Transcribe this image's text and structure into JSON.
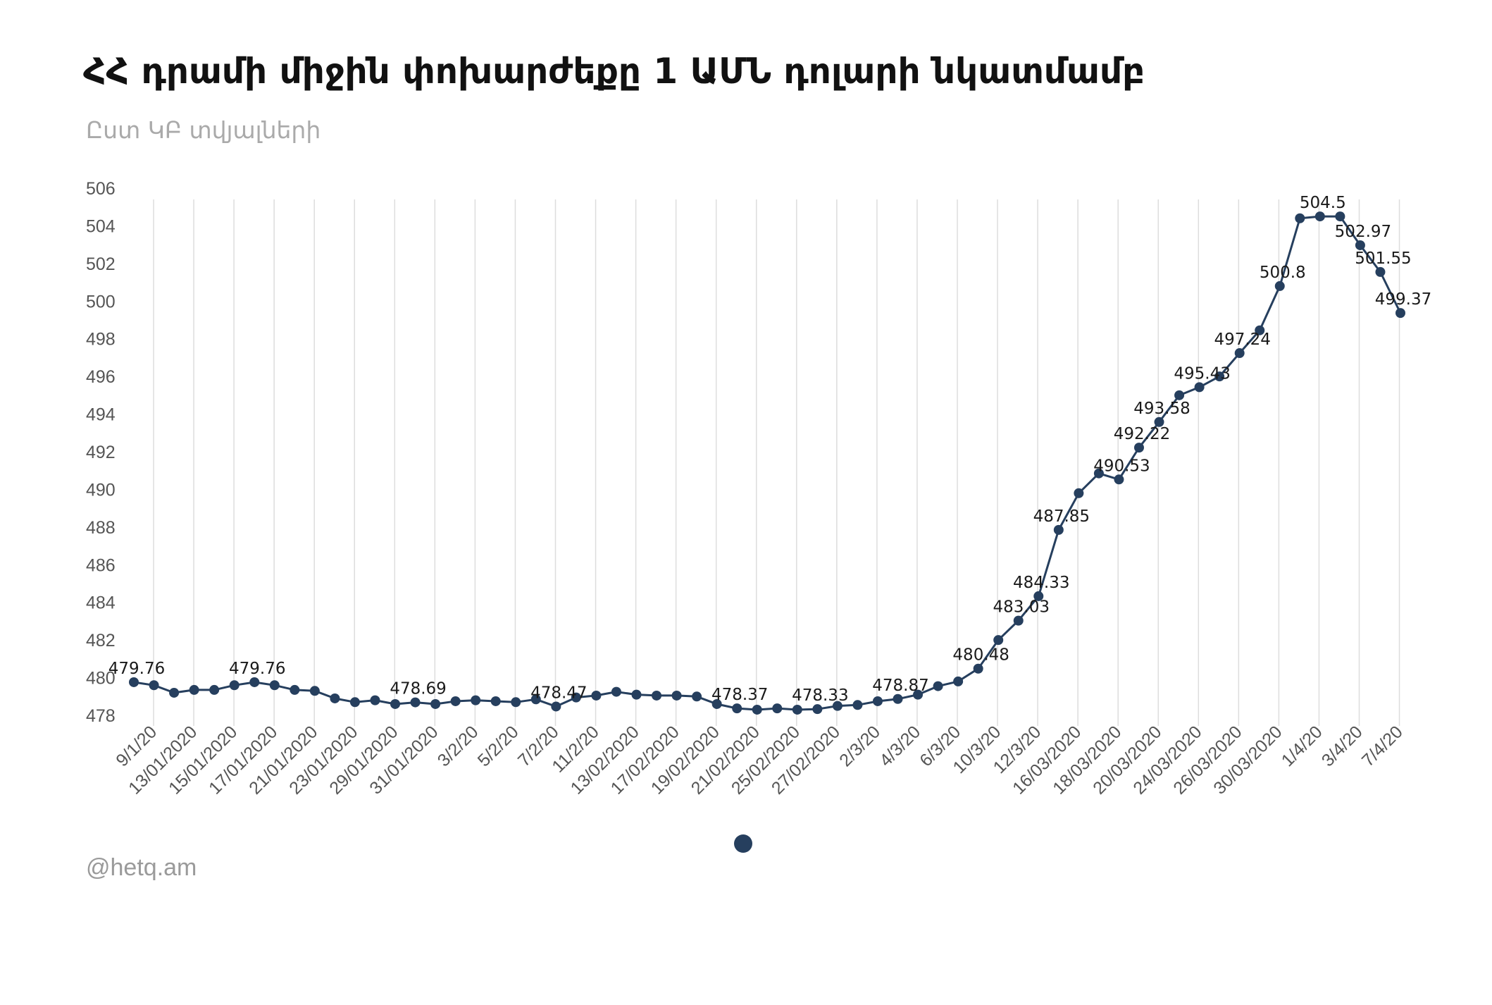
{
  "title": "ՀՀ դրամի միջին փոխարժեքը   1 ԱՄՆ դոլարի նկատմամբ",
  "subtitle": "Ըստ ԿԲ տվյալների",
  "credit": "@hetq.am",
  "colors": {
    "series": "#263f5e",
    "grid": "#dddddd",
    "text": "#555555"
  },
  "chart_data": {
    "type": "line",
    "title": "ՀՀ դրամի միջին փոխարժեքը   1 ԱՄՆ դոլարի նկատմամբ",
    "subtitle": "Ըստ ԿԲ տվյալների",
    "xlabel": "",
    "ylabel": "",
    "ylim": [
      478,
      506
    ],
    "yticks": [
      478,
      480,
      482,
      484,
      486,
      488,
      490,
      492,
      494,
      496,
      498,
      500,
      502,
      504,
      506
    ],
    "grid": "vertical",
    "legend": "bottom-center",
    "x_tick_labels": [
      "9/1/20",
      "13/01/2020",
      "15/01/2020",
      "17/01/2020",
      "21/01/2020",
      "23/01/2020",
      "29/01/2020",
      "31/01/2020",
      "3/2/20",
      "5/2/20",
      "7/2/20",
      "11/2/20",
      "13/02/2020",
      "17/02/2020",
      "19/02/2020",
      "21/02/2020",
      "25/02/2020",
      "27/02/2020",
      "2/3/20",
      "4/3/20",
      "6/3/20",
      "10/3/20",
      "12/3/20",
      "16/03/2020",
      "18/03/2020",
      "20/03/2020",
      "24/03/2020",
      "26/03/2020",
      "30/03/2020",
      "1/4/20",
      "3/4/20",
      "7/4/20"
    ],
    "series": [
      {
        "values": [
          479.76,
          479.6,
          479.2,
          479.35,
          479.35,
          479.6,
          479.76,
          479.6,
          479.35,
          479.3,
          478.9,
          478.7,
          478.8,
          478.6,
          478.69,
          478.6,
          478.75,
          478.8,
          478.75,
          478.7,
          478.85,
          478.47,
          478.95,
          479.05,
          479.25,
          479.1,
          479.05,
          479.05,
          479.0,
          478.6,
          478.37,
          478.3,
          478.37,
          478.3,
          478.33,
          478.5,
          478.55,
          478.75,
          478.87,
          479.1,
          479.55,
          479.8,
          480.48,
          482.0,
          483.03,
          484.33,
          487.85,
          489.8,
          490.85,
          490.53,
          492.22,
          493.58,
          495.0,
          495.43,
          496.0,
          497.24,
          498.45,
          500.8,
          504.4,
          504.5,
          504.5,
          502.97,
          501.55,
          499.37
        ],
        "data_labels": [
          {
            "index": 0,
            "text": "479.76"
          },
          {
            "index": 6,
            "text": "479.76"
          },
          {
            "index": 14,
            "text": "478.69"
          },
          {
            "index": 21,
            "text": "478.47"
          },
          {
            "index": 30,
            "text": "478.37"
          },
          {
            "index": 34,
            "text": "478.33"
          },
          {
            "index": 38,
            "text": "478.87"
          },
          {
            "index": 42,
            "text": "480.48"
          },
          {
            "index": 44,
            "text": "483.03"
          },
          {
            "index": 45,
            "text": "484.33"
          },
          {
            "index": 46,
            "text": "487.85"
          },
          {
            "index": 49,
            "text": "490.53"
          },
          {
            "index": 50,
            "text": "492.22"
          },
          {
            "index": 51,
            "text": "493.58"
          },
          {
            "index": 53,
            "text": "495.43"
          },
          {
            "index": 55,
            "text": "497.24"
          },
          {
            "index": 57,
            "text": "500.8"
          },
          {
            "index": 59,
            "text": "504.5"
          },
          {
            "index": 61,
            "text": "502.97"
          },
          {
            "index": 62,
            "text": "501.55"
          },
          {
            "index": 63,
            "text": "499.37"
          }
        ]
      }
    ]
  }
}
